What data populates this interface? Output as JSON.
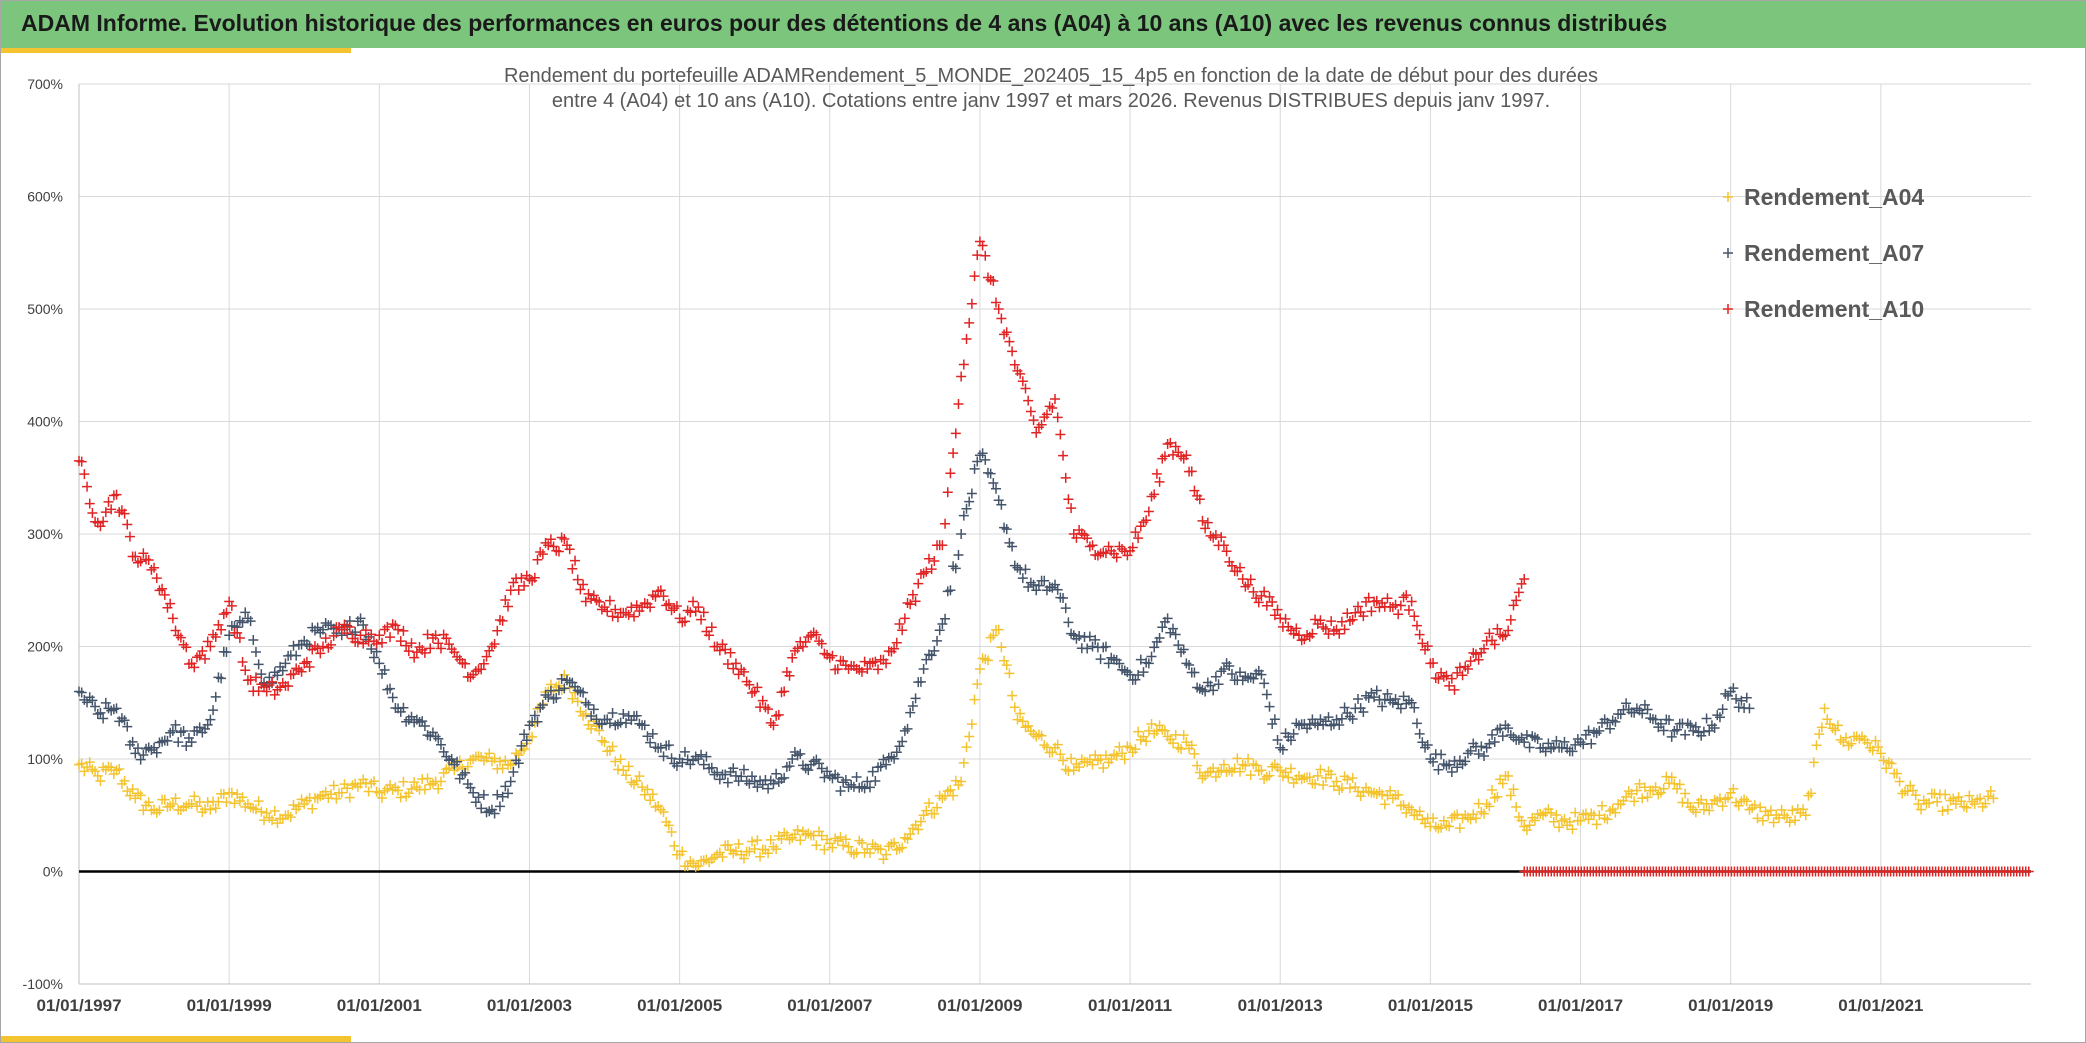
{
  "banner": {
    "title": "ADAM Informe. Evolution historique des performances en euros pour des détentions de 4 ans (A04) à 10 ans (A10) avec les revenus connus distribués"
  },
  "colors": {
    "banner_bg": "#7bc67c",
    "accent": "#f4c430",
    "A04": "#f4c430",
    "A07": "#44546a",
    "A10": "#e02424",
    "zero_line": "#000000",
    "grid": "#d9d9d9"
  },
  "chart_data": {
    "type": "scatter",
    "marker": "plus",
    "subtitle_lines": [
      "Rendement du portefeuille ADAMRendement_5_MONDE_202405_15_4p5  en fonction de la date de début pour des durées",
      "entre 4 (A04) et 10 ans (A10). Cotations entre janv 1997 et mars 2026. Revenus DISTRIBUES depuis janv 1997."
    ],
    "x_axis": {
      "type": "date",
      "range": [
        "1997-01-01",
        "2023-01-01"
      ],
      "tick_labels": [
        "01/01/1997",
        "01/01/1999",
        "01/01/2001",
        "01/01/2003",
        "01/01/2005",
        "01/01/2007",
        "01/01/2009",
        "01/01/2011",
        "01/01/2013",
        "01/01/2015",
        "01/01/2017",
        "01/01/2019",
        "01/01/2021"
      ],
      "tick_years": [
        1997,
        1999,
        2001,
        2003,
        2005,
        2007,
        2009,
        2011,
        2013,
        2015,
        2017,
        2019,
        2021
      ]
    },
    "y_axis": {
      "unit": "%",
      "range": [
        -100,
        700
      ],
      "tick_values": [
        -100,
        0,
        100,
        200,
        300,
        400,
        500,
        600,
        700
      ],
      "tick_labels": [
        "-100%",
        "0%",
        "100%",
        "200%",
        "300%",
        "400%",
        "500%",
        "600%",
        "700%"
      ]
    },
    "grid": true,
    "legend_position": "top-right",
    "series": [
      {
        "name": "Rendement_A04",
        "color": "#f4c430",
        "points": [
          [
            "1997-01",
            95
          ],
          [
            "1997-04",
            85
          ],
          [
            "1997-07",
            90
          ],
          [
            "1997-10",
            65
          ],
          [
            "1998-01",
            55
          ],
          [
            "1998-04",
            60
          ],
          [
            "1998-07",
            60
          ],
          [
            "1998-10",
            55
          ],
          [
            "1999-01",
            70
          ],
          [
            "1999-04",
            60
          ],
          [
            "1999-07",
            52
          ],
          [
            "1999-10",
            50
          ],
          [
            "2000-01",
            60
          ],
          [
            "2000-04",
            68
          ],
          [
            "2000-07",
            70
          ],
          [
            "2000-10",
            78
          ],
          [
            "2001-01",
            70
          ],
          [
            "2001-04",
            72
          ],
          [
            "2001-07",
            75
          ],
          [
            "2001-10",
            80
          ],
          [
            "2002-01",
            90
          ],
          [
            "2002-04",
            100
          ],
          [
            "2002-07",
            98
          ],
          [
            "2002-10",
            95
          ],
          [
            "2003-01",
            120
          ],
          [
            "2003-04",
            160
          ],
          [
            "2003-07",
            170
          ],
          [
            "2003-10",
            140
          ],
          [
            "2004-01",
            115
          ],
          [
            "2004-04",
            90
          ],
          [
            "2004-07",
            75
          ],
          [
            "2004-10",
            55
          ],
          [
            "2005-01",
            15
          ],
          [
            "2005-04",
            5
          ],
          [
            "2005-07",
            15
          ],
          [
            "2005-10",
            18
          ],
          [
            "2006-01",
            20
          ],
          [
            "2006-04",
            22
          ],
          [
            "2006-07",
            30
          ],
          [
            "2006-10",
            32
          ],
          [
            "2007-01",
            25
          ],
          [
            "2007-04",
            22
          ],
          [
            "2007-07",
            20
          ],
          [
            "2007-10",
            15
          ],
          [
            "2008-01",
            30
          ],
          [
            "2008-04",
            50
          ],
          [
            "2008-07",
            65
          ],
          [
            "2008-10",
            80
          ],
          [
            "2009-01",
            180
          ],
          [
            "2009-04",
            215
          ],
          [
            "2009-07",
            135
          ],
          [
            "2009-10",
            120
          ],
          [
            "2010-01",
            110
          ],
          [
            "2010-04",
            90
          ],
          [
            "2010-07",
            95
          ],
          [
            "2010-10",
            100
          ],
          [
            "2011-01",
            110
          ],
          [
            "2011-04",
            125
          ],
          [
            "2011-07",
            120
          ],
          [
            "2011-10",
            115
          ],
          [
            "2012-01",
            85
          ],
          [
            "2012-04",
            95
          ],
          [
            "2012-07",
            95
          ],
          [
            "2012-10",
            90
          ],
          [
            "2013-01",
            90
          ],
          [
            "2013-04",
            85
          ],
          [
            "2013-07",
            85
          ],
          [
            "2013-10",
            80
          ],
          [
            "2014-01",
            75
          ],
          [
            "2014-04",
            70
          ],
          [
            "2014-07",
            65
          ],
          [
            "2014-10",
            55
          ],
          [
            "2015-01",
            40
          ],
          [
            "2015-04",
            40
          ],
          [
            "2015-07",
            48
          ],
          [
            "2015-10",
            60
          ],
          [
            "2016-01",
            85
          ],
          [
            "2016-04",
            40
          ],
          [
            "2016-07",
            50
          ],
          [
            "2016-10",
            45
          ],
          [
            "2017-01",
            45
          ],
          [
            "2017-04",
            50
          ],
          [
            "2017-07",
            60
          ],
          [
            "2017-10",
            72
          ],
          [
            "2018-01",
            75
          ],
          [
            "2018-04",
            78
          ],
          [
            "2018-07",
            55
          ],
          [
            "2018-10",
            60
          ],
          [
            "2019-01",
            70
          ],
          [
            "2019-04",
            55
          ],
          [
            "2019-07",
            50
          ],
          [
            "2019-10",
            48
          ],
          [
            "2020-01",
            50
          ],
          [
            "2020-04",
            145
          ],
          [
            "2020-07",
            115
          ],
          [
            "2020-10",
            120
          ],
          [
            "2021-01",
            105
          ],
          [
            "2021-04",
            80
          ],
          [
            "2021-07",
            60
          ],
          [
            "2021-10",
            62
          ],
          [
            "2022-01",
            60
          ],
          [
            "2022-04",
            60
          ],
          [
            "2022-07",
            65
          ]
        ]
      },
      {
        "name": "Rendement_A07",
        "color": "#44546a",
        "points": [
          [
            "1997-01",
            160
          ],
          [
            "1997-04",
            140
          ],
          [
            "1997-07",
            145
          ],
          [
            "1997-10",
            105
          ],
          [
            "1998-01",
            110
          ],
          [
            "1998-04",
            125
          ],
          [
            "1998-07",
            115
          ],
          [
            "1998-10",
            135
          ],
          [
            "1999-01",
            210
          ],
          [
            "1999-04",
            225
          ],
          [
            "1999-07",
            165
          ],
          [
            "1999-10",
            185
          ],
          [
            "2000-01",
            205
          ],
          [
            "2000-04",
            215
          ],
          [
            "2000-07",
            210
          ],
          [
            "2000-10",
            225
          ],
          [
            "2001-01",
            185
          ],
          [
            "2001-04",
            145
          ],
          [
            "2001-07",
            135
          ],
          [
            "2001-10",
            120
          ],
          [
            "2002-01",
            95
          ],
          [
            "2002-04",
            70
          ],
          [
            "2002-07",
            55
          ],
          [
            "2002-10",
            80
          ],
          [
            "2003-01",
            130
          ],
          [
            "2003-04",
            155
          ],
          [
            "2003-07",
            170
          ],
          [
            "2003-10",
            150
          ],
          [
            "2004-01",
            135
          ],
          [
            "2004-04",
            140
          ],
          [
            "2004-07",
            130
          ],
          [
            "2004-10",
            110
          ],
          [
            "2005-01",
            100
          ],
          [
            "2005-04",
            100
          ],
          [
            "2005-07",
            88
          ],
          [
            "2005-10",
            85
          ],
          [
            "2006-01",
            80
          ],
          [
            "2006-04",
            78
          ],
          [
            "2006-07",
            100
          ],
          [
            "2006-10",
            95
          ],
          [
            "2007-01",
            85
          ],
          [
            "2007-04",
            75
          ],
          [
            "2007-07",
            80
          ],
          [
            "2007-10",
            95
          ],
          [
            "2008-01",
            125
          ],
          [
            "2008-04",
            180
          ],
          [
            "2008-07",
            220
          ],
          [
            "2008-10",
            300
          ],
          [
            "2009-01",
            370
          ],
          [
            "2009-04",
            330
          ],
          [
            "2009-07",
            270
          ],
          [
            "2009-10",
            250
          ],
          [
            "2010-01",
            255
          ],
          [
            "2010-04",
            210
          ],
          [
            "2010-07",
            200
          ],
          [
            "2010-10",
            190
          ],
          [
            "2011-01",
            175
          ],
          [
            "2011-04",
            185
          ],
          [
            "2011-07",
            225
          ],
          [
            "2011-10",
            185
          ],
          [
            "2012-01",
            160
          ],
          [
            "2012-04",
            180
          ],
          [
            "2012-07",
            170
          ],
          [
            "2012-10",
            175
          ],
          [
            "2013-01",
            110
          ],
          [
            "2013-04",
            130
          ],
          [
            "2013-07",
            130
          ],
          [
            "2013-10",
            135
          ],
          [
            "2014-01",
            145
          ],
          [
            "2014-04",
            155
          ],
          [
            "2014-07",
            150
          ],
          [
            "2014-10",
            150
          ],
          [
            "2015-01",
            100
          ],
          [
            "2015-04",
            95
          ],
          [
            "2015-07",
            105
          ],
          [
            "2015-10",
            110
          ],
          [
            "2016-01",
            130
          ],
          [
            "2016-04",
            115
          ],
          [
            "2016-07",
            110
          ],
          [
            "2016-10",
            110
          ],
          [
            "2017-01",
            115
          ],
          [
            "2017-04",
            125
          ],
          [
            "2017-07",
            140
          ],
          [
            "2017-10",
            145
          ],
          [
            "2018-01",
            135
          ],
          [
            "2018-04",
            125
          ],
          [
            "2018-07",
            125
          ],
          [
            "2018-10",
            130
          ],
          [
            "2019-01",
            160
          ],
          [
            "2019-04",
            145
          ]
        ]
      },
      {
        "name": "Rendement_A10",
        "color": "#e02424",
        "points": [
          [
            "1997-01",
            365
          ],
          [
            "1997-04",
            310
          ],
          [
            "1997-07",
            335
          ],
          [
            "1997-10",
            280
          ],
          [
            "1998-01",
            270
          ],
          [
            "1998-04",
            225
          ],
          [
            "1998-07",
            185
          ],
          [
            "1998-10",
            200
          ],
          [
            "1999-01",
            240
          ],
          [
            "1999-04",
            170
          ],
          [
            "1999-07",
            160
          ],
          [
            "1999-10",
            165
          ],
          [
            "2000-01",
            185
          ],
          [
            "2000-04",
            200
          ],
          [
            "2000-07",
            215
          ],
          [
            "2000-10",
            210
          ],
          [
            "2001-01",
            210
          ],
          [
            "2001-04",
            215
          ],
          [
            "2001-07",
            195
          ],
          [
            "2001-10",
            210
          ],
          [
            "2002-01",
            195
          ],
          [
            "2002-04",
            175
          ],
          [
            "2002-07",
            200
          ],
          [
            "2002-10",
            250
          ],
          [
            "2003-01",
            260
          ],
          [
            "2003-04",
            290
          ],
          [
            "2003-07",
            290
          ],
          [
            "2003-10",
            240
          ],
          [
            "2004-01",
            235
          ],
          [
            "2004-04",
            230
          ],
          [
            "2004-07",
            235
          ],
          [
            "2004-10",
            250
          ],
          [
            "2005-01",
            225
          ],
          [
            "2005-04",
            235
          ],
          [
            "2005-07",
            200
          ],
          [
            "2005-10",
            185
          ],
          [
            "2006-01",
            160
          ],
          [
            "2006-04",
            130
          ],
          [
            "2006-07",
            190
          ],
          [
            "2006-10",
            210
          ],
          [
            "2007-01",
            190
          ],
          [
            "2007-04",
            180
          ],
          [
            "2007-07",
            180
          ],
          [
            "2007-10",
            185
          ],
          [
            "2008-01",
            225
          ],
          [
            "2008-04",
            265
          ],
          [
            "2008-07",
            290
          ],
          [
            "2008-10",
            440
          ],
          [
            "2009-01",
            560
          ],
          [
            "2009-04",
            500
          ],
          [
            "2009-07",
            445
          ],
          [
            "2009-10",
            390
          ],
          [
            "2010-01",
            420
          ],
          [
            "2010-04",
            300
          ],
          [
            "2010-07",
            290
          ],
          [
            "2010-10",
            285
          ],
          [
            "2011-01",
            285
          ],
          [
            "2011-04",
            320
          ],
          [
            "2011-07",
            380
          ],
          [
            "2011-10",
            370
          ],
          [
            "2012-01",
            305
          ],
          [
            "2012-04",
            290
          ],
          [
            "2012-07",
            260
          ],
          [
            "2012-10",
            245
          ],
          [
            "2013-01",
            225
          ],
          [
            "2013-04",
            210
          ],
          [
            "2013-07",
            220
          ],
          [
            "2013-10",
            215
          ],
          [
            "2014-01",
            230
          ],
          [
            "2014-04",
            240
          ],
          [
            "2014-07",
            235
          ],
          [
            "2014-10",
            240
          ],
          [
            "2015-01",
            185
          ],
          [
            "2015-04",
            165
          ],
          [
            "2015-07",
            180
          ],
          [
            "2015-10",
            205
          ],
          [
            "2016-01",
            210
          ],
          [
            "2016-04",
            260
          ]
        ],
        "zero_segment": {
          "from": "2016-04",
          "to": "2023-01",
          "value": 0
        }
      }
    ]
  }
}
